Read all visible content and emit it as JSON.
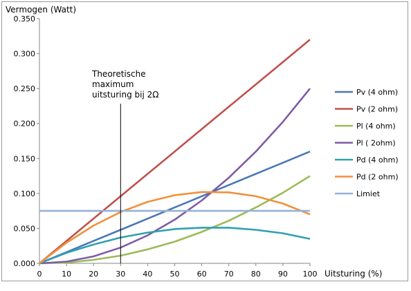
{
  "chart_data": {
    "type": "line",
    "title": "",
    "ylabel": "Vermogen (Watt)",
    "xlabel": "Uitsturing (%)",
    "xlim": [
      0,
      100
    ],
    "ylim": [
      0,
      0.35
    ],
    "x_ticks": [
      "0",
      "10",
      "20",
      "30",
      "40",
      "50",
      "60",
      "70",
      "80",
      "90",
      "100"
    ],
    "y_ticks": [
      "0.000",
      "0.050",
      "0.100",
      "0.150",
      "0.200",
      "0.250",
      "0.300",
      "0.350"
    ],
    "grid": false,
    "legend_position": "right",
    "x": [
      0,
      10,
      20,
      30,
      40,
      50,
      60,
      70,
      80,
      90,
      100
    ],
    "series": [
      {
        "name": "Pv (4 ohm)",
        "color": "#4a78b5",
        "values": [
          0,
          0.016,
          0.032,
          0.048,
          0.064,
          0.08,
          0.096,
          0.112,
          0.128,
          0.144,
          0.16
        ]
      },
      {
        "name": "Pv (2 ohm)",
        "color": "#c0504d",
        "values": [
          0,
          0.032,
          0.064,
          0.096,
          0.128,
          0.16,
          0.192,
          0.224,
          0.256,
          0.288,
          0.32
        ]
      },
      {
        "name": "Pl (4 ohm)",
        "color": "#9bbb59",
        "values": [
          0,
          0.001,
          0.005,
          0.011,
          0.02,
          0.031,
          0.045,
          0.061,
          0.08,
          0.101,
          0.125
        ]
      },
      {
        "name": "Pl ( 2ohm)",
        "color": "#7f5ba6",
        "values": [
          0,
          0.0025,
          0.01,
          0.0225,
          0.04,
          0.0625,
          0.09,
          0.1225,
          0.16,
          0.2025,
          0.25
        ]
      },
      {
        "name": "Pd (4 ohm)",
        "color": "#31a0b0",
        "values": [
          0,
          0.015,
          0.027,
          0.037,
          0.044,
          0.049,
          0.051,
          0.051,
          0.048,
          0.043,
          0.035
        ]
      },
      {
        "name": "Pd (2 ohm)",
        "color": "#f0913a",
        "values": [
          0,
          0.0295,
          0.054,
          0.0735,
          0.088,
          0.0975,
          0.102,
          0.1015,
          0.096,
          0.0855,
          0.07
        ]
      },
      {
        "name": "Limiet",
        "color": "#95b3d7",
        "values": [
          0.075,
          0.075,
          0.075,
          0.075,
          0.075,
          0.075,
          0.075,
          0.075,
          0.075,
          0.075,
          0.075
        ]
      }
    ],
    "annotations": [
      {
        "lines": [
          "Theoretische",
          "maximum",
          "uitsturing bij 2Ω"
        ],
        "x": 30
      }
    ]
  }
}
